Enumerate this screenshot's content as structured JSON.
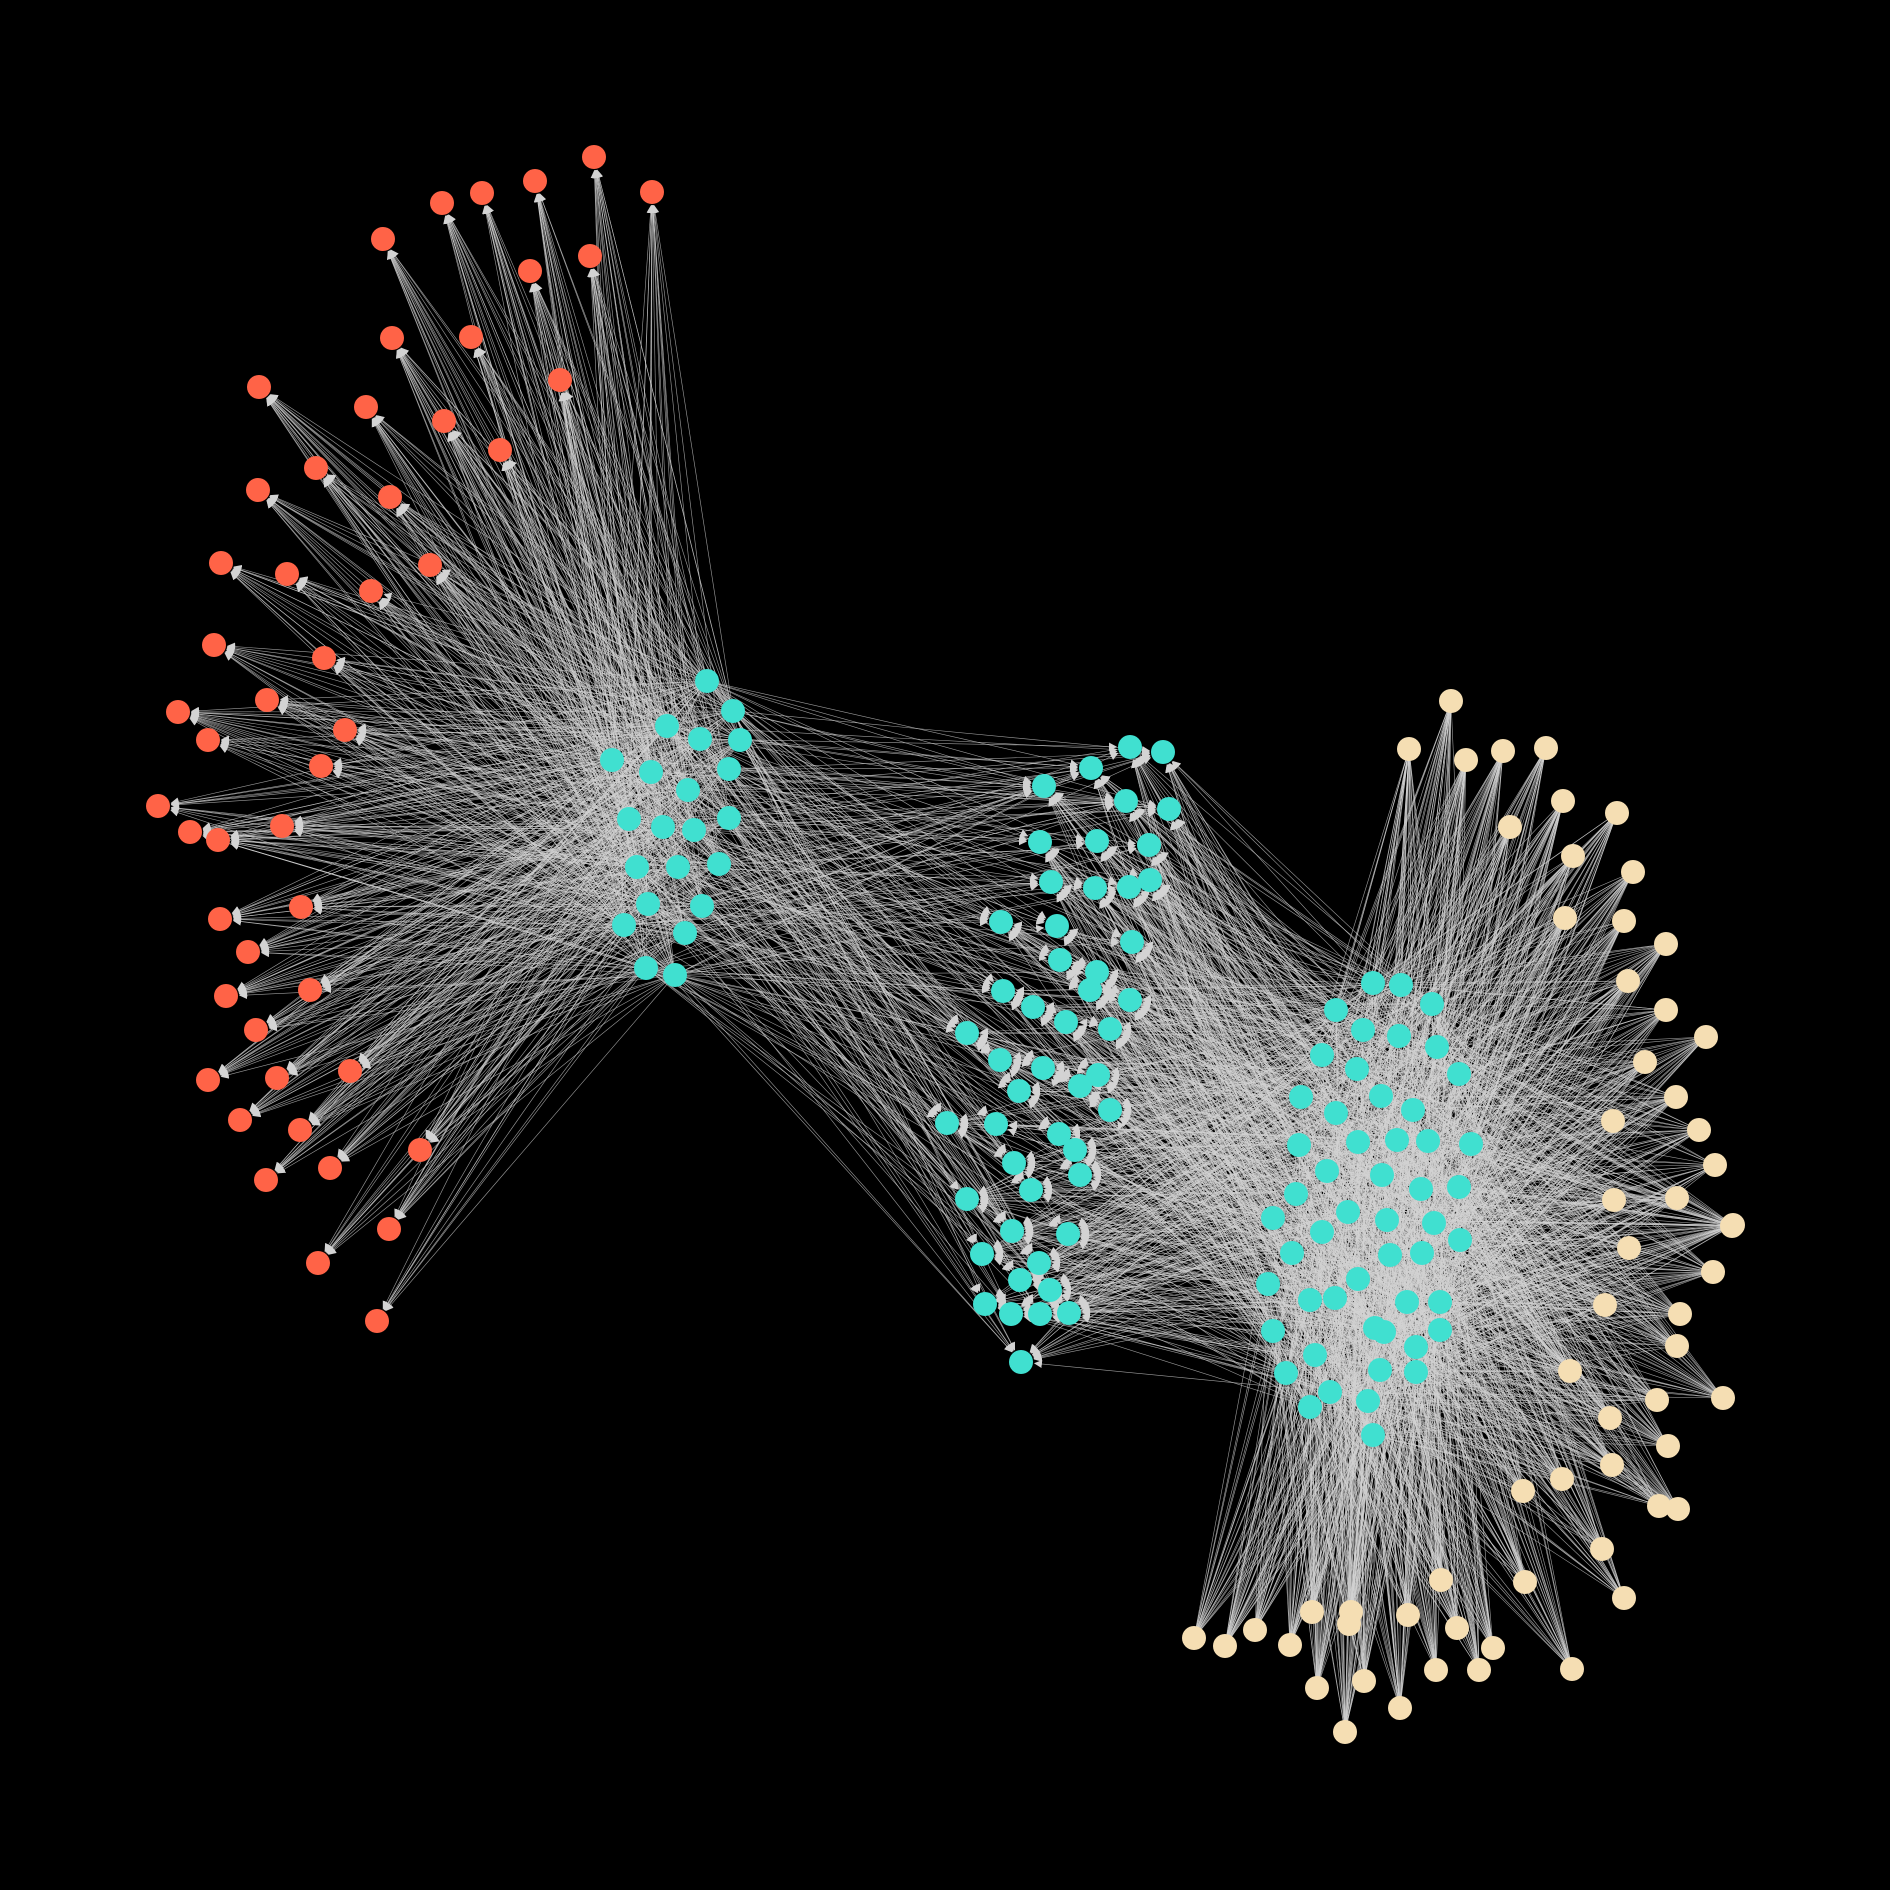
{
  "diagram": {
    "type": "directed-network-graph",
    "background_color": "#000000",
    "edge_color": "#d3d3d3",
    "node_groups": [
      {
        "group": "left-targets",
        "color": "#ff6347",
        "node_count": 50,
        "edge_direction": "from-inner-cluster-to-node"
      },
      {
        "group": "inner-cluster-a",
        "color": "#40e0d0",
        "node_count": 22
      },
      {
        "group": "inner-cluster-b",
        "color": "#40e0d0",
        "node_count": 50
      },
      {
        "group": "inner-cluster-c",
        "color": "#40e0d0",
        "node_count": 52
      },
      {
        "group": "right-sources",
        "color": "#f5deb3",
        "node_count": 61,
        "edge_direction": "from-node-to-inner-cluster"
      }
    ]
  }
}
